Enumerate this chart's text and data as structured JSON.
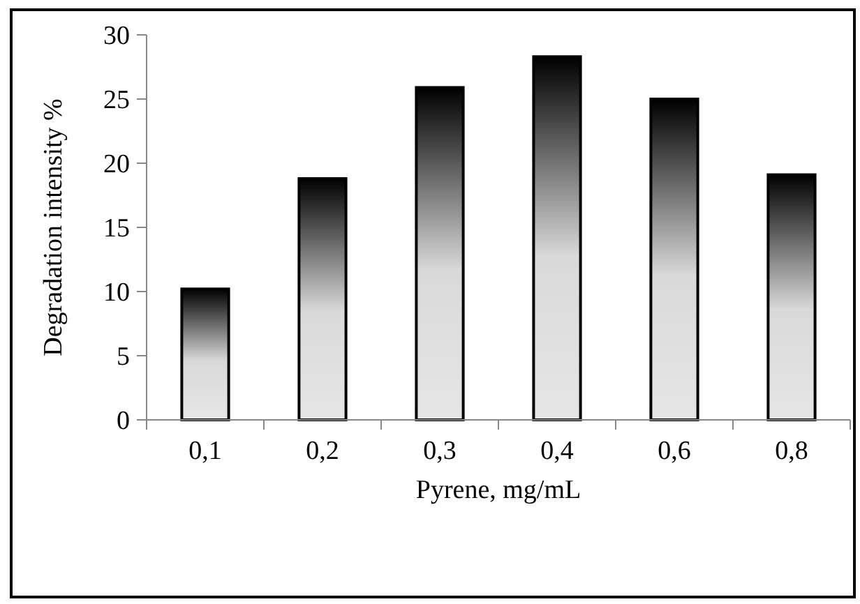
{
  "chart_data": {
    "type": "bar",
    "xlabel": "Pyrene, mg/mL",
    "ylabel": "Degradation intensity %",
    "categories": [
      "0,1",
      "0,2",
      "0,3",
      "0,4",
      "0,6",
      "0,8"
    ],
    "series": [
      {
        "color": "#000000",
        "values": [
          10.2,
          18.8,
          25.9,
          28.3,
          25.0,
          19.1
        ]
      }
    ],
    "ylim": [
      0,
      30
    ],
    "yticks": [
      0,
      5,
      10,
      15,
      20,
      25,
      30
    ]
  }
}
